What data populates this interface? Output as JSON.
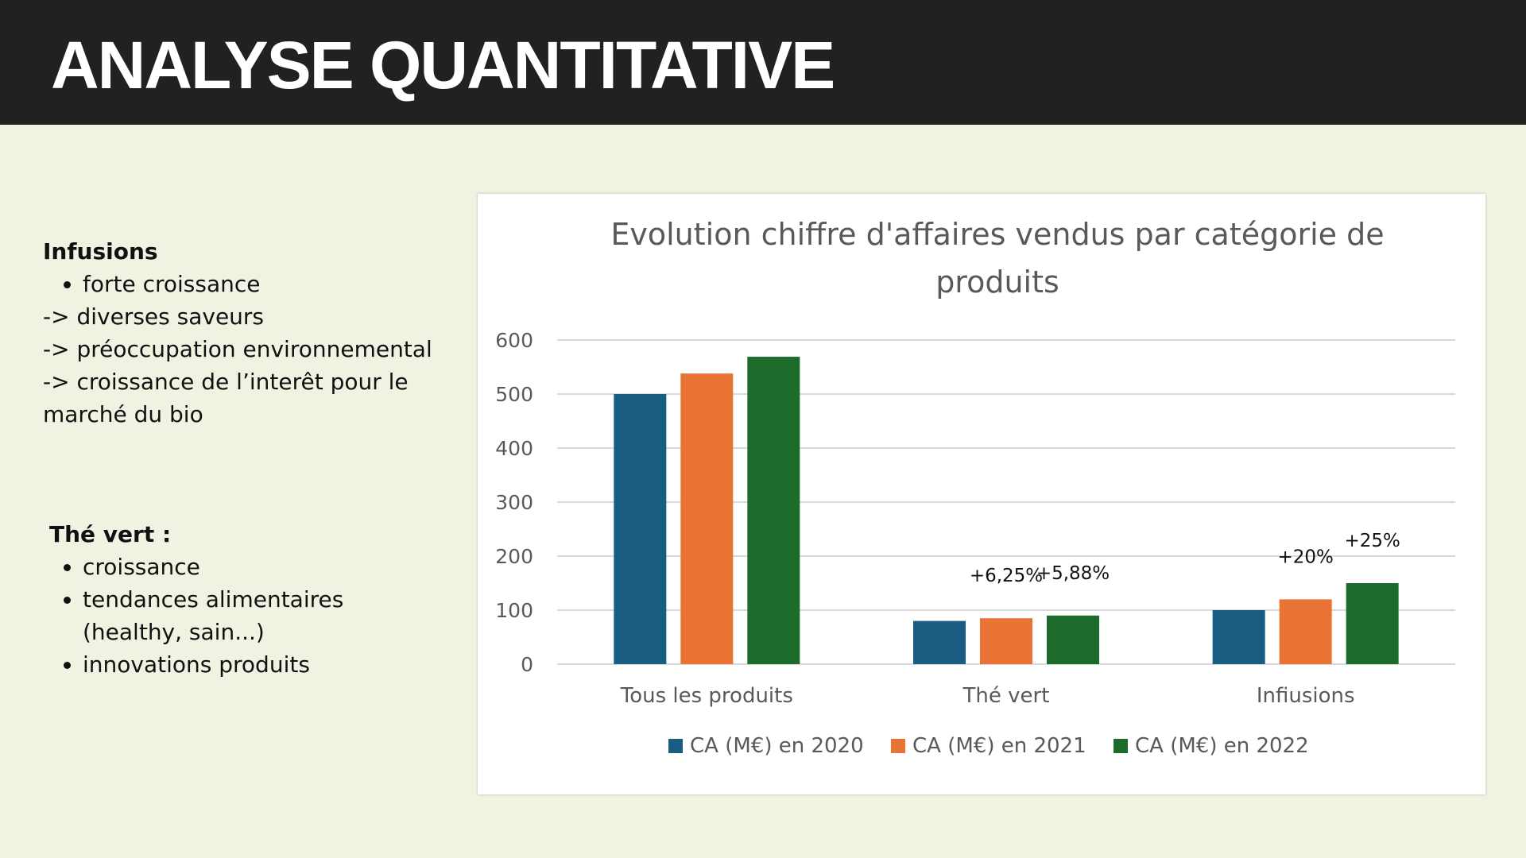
{
  "header": {
    "title": "ANALYSE QUANTITATIVE"
  },
  "notes": {
    "infusions": {
      "heading": "Infusions",
      "bullets": [
        "forte croissance"
      ],
      "lines": [
        "-> diverses saveurs",
        "-> préoccupation environnemental",
        "-> croissance de l’interêt pour le marché du bio"
      ]
    },
    "the_vert": {
      "heading": "Thé vert :",
      "bullets": [
        "croissance",
        "tendances alimentaires (healthy, sain...)",
        "innovations produits"
      ]
    }
  },
  "colors": {
    "s2020": "#1a5d82",
    "s2021": "#e97334",
    "s2022": "#1d6b2a"
  },
  "chart_data": {
    "type": "bar",
    "title": "Evolution chiffre d'affaires vendus par catégorie de produits",
    "title_lines": [
      "Evolution chiffre d'affaires vendus par catégorie de",
      "produits"
    ],
    "categories": [
      "Tous les produits",
      "Thé vert",
      "Infiusions"
    ],
    "series": [
      {
        "name": "CA (M€) en 2020",
        "color": "#1a5d82",
        "values": [
          500,
          80,
          100
        ]
      },
      {
        "name": "CA (M€) en 2021",
        "color": "#e97334",
        "values": [
          538,
          85,
          120
        ]
      },
      {
        "name": "CA (M€) en 2022",
        "color": "#1d6b2a",
        "values": [
          569,
          90,
          150
        ]
      }
    ],
    "yticks": [
      0,
      100,
      200,
      300,
      400,
      500,
      600
    ],
    "ylim": [
      0,
      600
    ],
    "grid": true,
    "legend": "bottom",
    "annotations": [
      {
        "category": 1,
        "series": 1,
        "text": "+6,25%"
      },
      {
        "category": 1,
        "series": 2,
        "text": "+5,88%"
      },
      {
        "category": 2,
        "series": 1,
        "text": "+20%"
      },
      {
        "category": 2,
        "series": 2,
        "text": "+25%"
      }
    ]
  }
}
